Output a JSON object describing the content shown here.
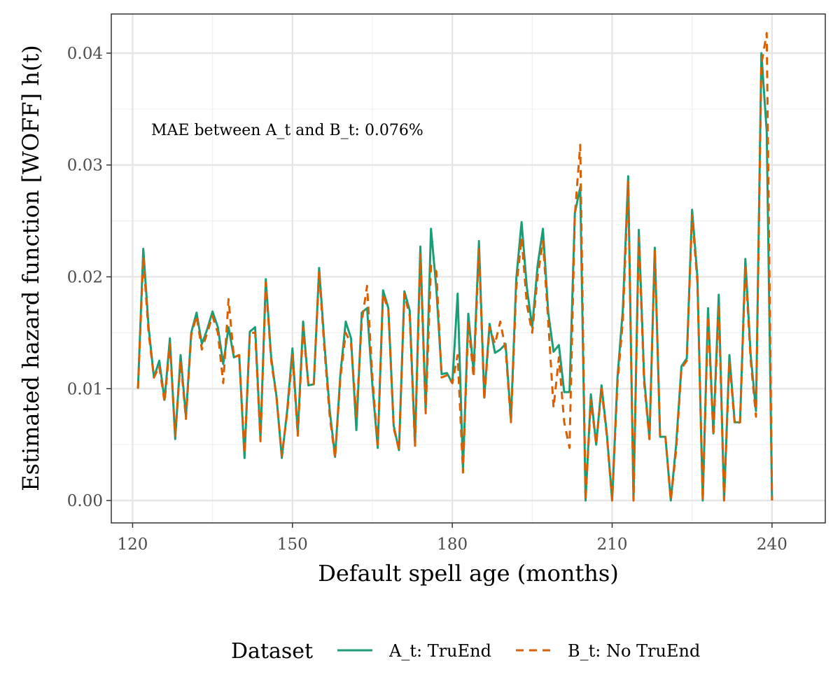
{
  "chart_data": {
    "type": "line",
    "xlabel": "Default spell age (months)",
    "ylabel": "Estimated hazard function [WOFF] h(t)",
    "xlim": [
      116,
      250
    ],
    "ylim": [
      -0.002,
      0.0435
    ],
    "xticks": [
      120,
      150,
      180,
      210,
      240
    ],
    "yticks": [
      0.0,
      0.01,
      0.02,
      0.03,
      0.04
    ],
    "xtick_labels": [
      "120",
      "150",
      "180",
      "210",
      "240"
    ],
    "ytick_labels": [
      "0.00",
      "0.01",
      "0.02",
      "0.03",
      "0.04"
    ],
    "grid": true,
    "annotation": "MAE between A_t and B_t: 0.076%",
    "legend": {
      "title": "Dataset",
      "position": "bottom",
      "entries": [
        "A_t: TruEnd",
        "B_t: No TruEnd"
      ]
    },
    "series": [
      {
        "name": "A_t: TruEnd",
        "color": "#1b9e77",
        "style": "solid",
        "x": [
          121,
          122,
          123,
          124,
          125,
          126,
          127,
          128,
          129,
          130,
          131,
          132,
          133,
          134,
          135,
          136,
          137,
          138,
          139,
          140,
          141,
          142,
          143,
          144,
          145,
          146,
          147,
          148,
          149,
          150,
          151,
          152,
          153,
          154,
          155,
          156,
          157,
          158,
          159,
          160,
          161,
          162,
          163,
          164,
          165,
          166,
          167,
          168,
          169,
          170,
          171,
          172,
          173,
          174,
          175,
          176,
          177,
          178,
          179,
          180,
          181,
          182,
          183,
          184,
          185,
          186,
          187,
          188,
          189,
          190,
          191,
          192,
          193,
          194,
          195,
          196,
          197,
          198,
          199,
          200,
          201,
          202,
          203,
          204,
          205,
          206,
          207,
          208,
          209,
          210,
          211,
          212,
          213,
          214,
          215,
          216,
          217,
          218,
          219,
          220,
          221,
          222,
          223,
          224,
          225,
          226,
          227,
          228,
          229,
          230,
          231,
          232,
          233,
          234,
          235,
          236,
          237,
          238,
          239,
          240
        ],
        "y": [
          0.01,
          0.0225,
          0.0155,
          0.011,
          0.0125,
          0.009,
          0.0145,
          0.0055,
          0.013,
          0.0075,
          0.015,
          0.0168,
          0.014,
          0.0153,
          0.0169,
          0.0155,
          0.0122,
          0.0155,
          0.0128,
          0.013,
          0.0038,
          0.0151,
          0.0155,
          0.0055,
          0.0198,
          0.0128,
          0.0093,
          0.0038,
          0.008,
          0.0136,
          0.006,
          0.016,
          0.0103,
          0.0104,
          0.0208,
          0.014,
          0.008,
          0.0039,
          0.0113,
          0.016,
          0.0145,
          0.0063,
          0.0168,
          0.0172,
          0.0103,
          0.0047,
          0.0188,
          0.0172,
          0.0067,
          0.0045,
          0.0187,
          0.017,
          0.005,
          0.0227,
          0.008,
          0.0243,
          0.019,
          0.0113,
          0.0114,
          0.0105,
          0.0185,
          0.0028,
          0.0167,
          0.0115,
          0.0232,
          0.0092,
          0.0158,
          0.0132,
          0.0135,
          0.014,
          0.0072,
          0.0198,
          0.0249,
          0.019,
          0.0155,
          0.021,
          0.0243,
          0.0168,
          0.0133,
          0.0139,
          0.0097,
          0.0097,
          0.0257,
          0.028,
          0.0,
          0.0095,
          0.005,
          0.0103,
          0.006,
          0.0,
          0.011,
          0.017,
          0.029,
          0.0,
          0.0242,
          0.011,
          0.0055,
          0.0226,
          0.0057,
          0.0057,
          0.0,
          0.005,
          0.012,
          0.0127,
          0.026,
          0.02,
          0.0,
          0.0172,
          0.006,
          0.0184,
          0.0,
          0.013,
          0.007,
          0.007,
          0.0216,
          0.013,
          0.008,
          0.04,
          0.033,
          0.0
        ]
      },
      {
        "name": "B_t: No TruEnd",
        "color": "#d95f02",
        "style": "dashed",
        "x": [
          121,
          122,
          123,
          124,
          125,
          126,
          127,
          128,
          129,
          130,
          131,
          132,
          133,
          134,
          135,
          136,
          137,
          138,
          139,
          140,
          141,
          142,
          143,
          144,
          145,
          146,
          147,
          148,
          149,
          150,
          151,
          152,
          153,
          154,
          155,
          156,
          157,
          158,
          159,
          160,
          161,
          162,
          163,
          164,
          165,
          166,
          167,
          168,
          169,
          170,
          171,
          172,
          173,
          174,
          175,
          176,
          177,
          178,
          179,
          180,
          181,
          182,
          183,
          184,
          185,
          186,
          187,
          188,
          189,
          190,
          191,
          192,
          193,
          194,
          195,
          196,
          197,
          198,
          199,
          200,
          201,
          202,
          203,
          204,
          205,
          206,
          207,
          208,
          209,
          210,
          211,
          212,
          213,
          214,
          215,
          216,
          217,
          218,
          219,
          220,
          221,
          222,
          223,
          224,
          225,
          226,
          227,
          228,
          229,
          230,
          231,
          232,
          233,
          234,
          235,
          236,
          237,
          238,
          239,
          240
        ],
        "y": [
          0.01,
          0.0218,
          0.015,
          0.011,
          0.012,
          0.0088,
          0.014,
          0.0058,
          0.0125,
          0.0073,
          0.0148,
          0.0165,
          0.0135,
          0.015,
          0.0165,
          0.015,
          0.0105,
          0.018,
          0.0128,
          0.013,
          0.0042,
          0.015,
          0.015,
          0.0053,
          0.0195,
          0.0125,
          0.0092,
          0.004,
          0.0078,
          0.013,
          0.0058,
          0.0155,
          0.0103,
          0.0104,
          0.0205,
          0.0135,
          0.0075,
          0.0038,
          0.011,
          0.015,
          0.014,
          0.0075,
          0.016,
          0.0192,
          0.011,
          0.005,
          0.0185,
          0.017,
          0.0065,
          0.0045,
          0.0185,
          0.0165,
          0.0048,
          0.022,
          0.0078,
          0.021,
          0.0205,
          0.011,
          0.0112,
          0.0105,
          0.013,
          0.0025,
          0.016,
          0.011,
          0.0225,
          0.009,
          0.0155,
          0.014,
          0.016,
          0.0135,
          0.007,
          0.019,
          0.0235,
          0.0175,
          0.015,
          0.02,
          0.0232,
          0.016,
          0.0083,
          0.0128,
          0.007,
          0.0047,
          0.0255,
          0.0318,
          0.0,
          0.009,
          0.005,
          0.01,
          0.0058,
          0.0,
          0.0105,
          0.016,
          0.0285,
          0.0,
          0.0235,
          0.0105,
          0.0055,
          0.0224,
          0.0057,
          0.0057,
          0.0,
          0.0045,
          0.0118,
          0.0125,
          0.0255,
          0.0195,
          0.0,
          0.0165,
          0.0058,
          0.0175,
          0.0,
          0.0125,
          0.0068,
          0.007,
          0.021,
          0.0125,
          0.0075,
          0.039,
          0.0418,
          0.0
        ]
      }
    ]
  }
}
